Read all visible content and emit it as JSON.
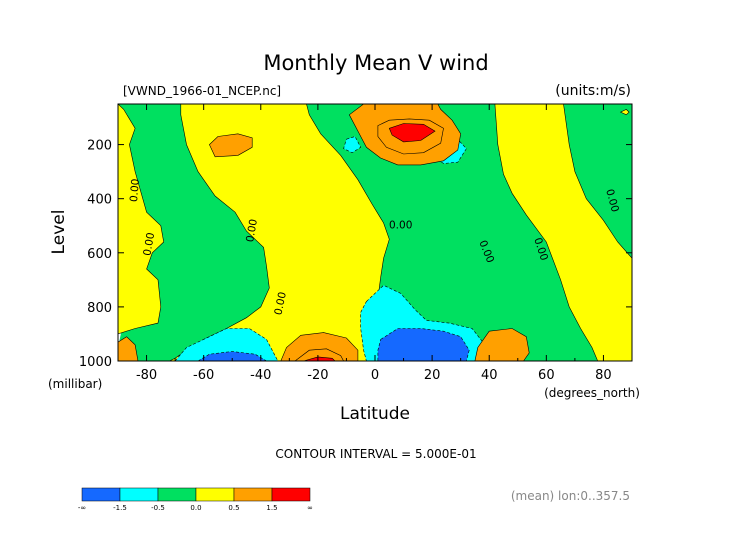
{
  "chart_data": {
    "type": "heatmap",
    "subtype": "filled-contour",
    "title": "Monthly Mean V wind",
    "subtitle_left": "[VWND_1966-01_NCEP.nc]",
    "subtitle_right": "(units:m/s)",
    "xlabel": "Latitude",
    "xunits": "(degrees_north)",
    "ylabel": "Level",
    "yunits": "(millibar)",
    "xlim": [
      -90,
      90
    ],
    "ylim": [
      1000,
      50
    ],
    "y_inverted": true,
    "x_ticks": [
      -80,
      -60,
      -40,
      -20,
      0,
      20,
      40,
      60,
      80
    ],
    "y_ticks": [
      200,
      400,
      600,
      800,
      1000
    ],
    "contour_interval_text": "CONTOUR INTERVAL = 5.000E-01",
    "footnote": "(mean) lon:0..357.5",
    "contour_labels": [
      {
        "text": "0.00",
        "x": -83,
        "y": 370,
        "rotate": -85
      },
      {
        "text": "0.00",
        "x": -78,
        "y": 570,
        "rotate": -80
      },
      {
        "text": "0.00",
        "x": -42,
        "y": 520,
        "rotate": -80
      },
      {
        "text": "0.00",
        "x": -32,
        "y": 790,
        "rotate": -78
      },
      {
        "text": "0.00",
        "x": 9,
        "y": 510,
        "rotate": 0
      },
      {
        "text": "0.00",
        "x": 38,
        "y": 600,
        "rotate": 68
      },
      {
        "text": "0.00",
        "x": 57,
        "y": 590,
        "rotate": 72
      },
      {
        "text": "0.00",
        "x": 82,
        "y": 410,
        "rotate": 75
      }
    ],
    "regions": [
      {
        "level": 0,
        "points": [
          [
            -90,
            50
          ],
          [
            -88,
            70
          ],
          [
            -84,
            140
          ],
          [
            -86,
            200
          ],
          [
            -84,
            300
          ],
          [
            -80,
            450
          ],
          [
            -75,
            500
          ],
          [
            -74,
            560
          ],
          [
            -78,
            600
          ],
          [
            -80,
            660
          ],
          [
            -76,
            700
          ],
          [
            -75,
            800
          ],
          [
            -76,
            860
          ],
          [
            -84,
            880
          ],
          [
            -90,
            900
          ]
        ]
      },
      {
        "level": 0,
        "points": [
          [
            -68,
            50
          ],
          [
            -68,
            90
          ],
          [
            -66,
            200
          ],
          [
            -62,
            300
          ],
          [
            -56,
            390
          ],
          [
            -49,
            450
          ],
          [
            -45,
            520
          ],
          [
            -39,
            580
          ],
          [
            -38,
            650
          ],
          [
            -37,
            730
          ],
          [
            -40,
            800
          ],
          [
            -45,
            840
          ],
          [
            -52,
            880
          ],
          [
            -60,
            920
          ],
          [
            -66,
            960
          ],
          [
            -70,
            990
          ],
          [
            -72,
            1000
          ],
          [
            -1,
            1000
          ],
          [
            0,
            960
          ],
          [
            1,
            880
          ],
          [
            1,
            770
          ],
          [
            2,
            690
          ],
          [
            3,
            620
          ],
          [
            5,
            550
          ],
          [
            3,
            490
          ],
          [
            -1,
            420
          ],
          [
            -6,
            330
          ],
          [
            -12,
            240
          ],
          [
            -19,
            160
          ],
          [
            -23,
            90
          ],
          [
            -24,
            50
          ]
        ]
      },
      {
        "level": 0,
        "points": [
          [
            42,
            50
          ],
          [
            43,
            200
          ],
          [
            45,
            310
          ],
          [
            48,
            380
          ],
          [
            53,
            460
          ],
          [
            60,
            560
          ],
          [
            65,
            700
          ],
          [
            68,
            800
          ],
          [
            72,
            880
          ],
          [
            76,
            950
          ],
          [
            78,
            1000
          ],
          [
            90,
            1000
          ],
          [
            90,
            620
          ],
          [
            85,
            560
          ],
          [
            80,
            480
          ],
          [
            74,
            400
          ],
          [
            70,
            300
          ],
          [
            68,
            200
          ],
          [
            66,
            50
          ]
        ]
      },
      {
        "level": -0.5,
        "points": [
          [
            -10,
            180
          ],
          [
            -7,
            170
          ],
          [
            -5,
            210
          ],
          [
            -8,
            230
          ],
          [
            -11,
            215
          ]
        ]
      },
      {
        "level": -0.5,
        "points": [
          [
            -3,
            780
          ],
          [
            3,
            720
          ],
          [
            9,
            750
          ],
          [
            14,
            810
          ],
          [
            18,
            850
          ],
          [
            26,
            860
          ],
          [
            34,
            880
          ],
          [
            40,
            960
          ],
          [
            41,
            1000
          ],
          [
            -3,
            1000
          ],
          [
            -4,
            960
          ],
          [
            -5,
            880
          ],
          [
            -5,
            820
          ]
        ]
      },
      {
        "level": -1,
        "points": [
          [
            2,
            920
          ],
          [
            8,
            880
          ],
          [
            16,
            880
          ],
          [
            24,
            890
          ],
          [
            30,
            910
          ],
          [
            33,
            960
          ],
          [
            32,
            1000
          ],
          [
            1,
            1000
          ],
          [
            1,
            960
          ]
        ]
      },
      {
        "level": -0.5,
        "points": [
          [
            20,
            200
          ],
          [
            23,
            160
          ],
          [
            28,
            170
          ],
          [
            32,
            215
          ],
          [
            29,
            265
          ],
          [
            24,
            270
          ],
          [
            20,
            240
          ]
        ]
      },
      {
        "level": -0.5,
        "points": [
          [
            -70,
            1000
          ],
          [
            -66,
            950
          ],
          [
            -60,
            920
          ],
          [
            -52,
            880
          ],
          [
            -44,
            880
          ],
          [
            -38,
            920
          ],
          [
            -36,
            960
          ],
          [
            -34,
            1000
          ]
        ]
      },
      {
        "level": -1,
        "points": [
          [
            -62,
            1000
          ],
          [
            -58,
            975
          ],
          [
            -50,
            965
          ],
          [
            -42,
            975
          ],
          [
            -38,
            1000
          ]
        ]
      },
      {
        "level": 0.5,
        "points": [
          [
            -4,
            50
          ],
          [
            -9,
            90
          ],
          [
            -6,
            150
          ],
          [
            -3,
            210
          ],
          [
            2,
            250
          ],
          [
            8,
            275
          ],
          [
            16,
            275
          ],
          [
            24,
            260
          ],
          [
            29,
            220
          ],
          [
            30,
            160
          ],
          [
            27,
            110
          ],
          [
            23,
            70
          ],
          [
            22,
            50
          ]
        ]
      },
      {
        "level": 1,
        "points": [
          [
            1,
            130
          ],
          [
            5,
            110
          ],
          [
            12,
            105
          ],
          [
            19,
            110
          ],
          [
            24,
            140
          ],
          [
            23,
            195
          ],
          [
            17,
            230
          ],
          [
            10,
            235
          ],
          [
            4,
            210
          ],
          [
            1,
            170
          ]
        ]
      },
      {
        "level": 1.5,
        "points": [
          [
            5,
            140
          ],
          [
            10,
            122
          ],
          [
            17,
            125
          ],
          [
            21,
            150
          ],
          [
            16,
            185
          ],
          [
            10,
            190
          ],
          [
            6,
            165
          ]
        ]
      },
      {
        "level": 0.5,
        "points": [
          [
            -58,
            200
          ],
          [
            -55,
            170
          ],
          [
            -48,
            160
          ],
          [
            -43,
            175
          ],
          [
            -43,
            210
          ],
          [
            -48,
            240
          ],
          [
            -56,
            245
          ]
        ]
      },
      {
        "level": 0.5,
        "points": [
          [
            -33,
            1000
          ],
          [
            -31,
            950
          ],
          [
            -26,
            905
          ],
          [
            -18,
            895
          ],
          [
            -10,
            915
          ],
          [
            -6,
            960
          ],
          [
            -6,
            1000
          ]
        ]
      },
      {
        "level": 1,
        "points": [
          [
            -28,
            1000
          ],
          [
            -23,
            960
          ],
          [
            -17,
            955
          ],
          [
            -12,
            980
          ],
          [
            -11,
            1000
          ]
        ]
      },
      {
        "level": 1.5,
        "points": [
          [
            -25,
            1000
          ],
          [
            -20,
            985
          ],
          [
            -15,
            990
          ],
          [
            -14,
            1000
          ]
        ]
      },
      {
        "level": 0.5,
        "points": [
          [
            -90,
            930
          ],
          [
            -87,
            910
          ],
          [
            -84,
            940
          ],
          [
            -83,
            1000
          ],
          [
            -90,
            1000
          ]
        ]
      },
      {
        "level": 0.5,
        "points": [
          [
            35,
            1000
          ],
          [
            36,
            950
          ],
          [
            40,
            890
          ],
          [
            48,
            880
          ],
          [
            53,
            910
          ],
          [
            54,
            970
          ],
          [
            52,
            1000
          ]
        ]
      },
      {
        "level": 0,
        "points": [
          [
            88,
            70
          ],
          [
            89,
            80
          ],
          [
            88,
            90
          ],
          [
            86,
            80
          ]
        ]
      }
    ]
  },
  "colorbar": {
    "label_text": [
      "-∞",
      "-1.5",
      "-0.5",
      "0.0",
      "0.5",
      "1.5",
      "∞"
    ],
    "label_values": [
      null,
      -1.5,
      -0.5,
      0,
      0.5,
      1.5,
      null
    ],
    "bins": [
      {
        "level": -1.5,
        "color": "#1569ff"
      },
      {
        "level": -1,
        "color": "#00ffff"
      },
      {
        "level": -0.5,
        "color": "#00e060"
      },
      {
        "level": 0,
        "color": "#ffff00"
      },
      {
        "level": 0.5,
        "color": "#ffa000"
      },
      {
        "level": 1,
        "color": "#ff0000"
      }
    ]
  },
  "colors": {
    "-1.5": "#1569ff",
    "-1": "#1569ff",
    "-0.5": "#00ffff",
    "0": "#ffff00",
    "0.5": "#ffa000",
    "1": "#ffa000",
    "1.5": "#ff0000",
    "background_field": "#00e060"
  }
}
